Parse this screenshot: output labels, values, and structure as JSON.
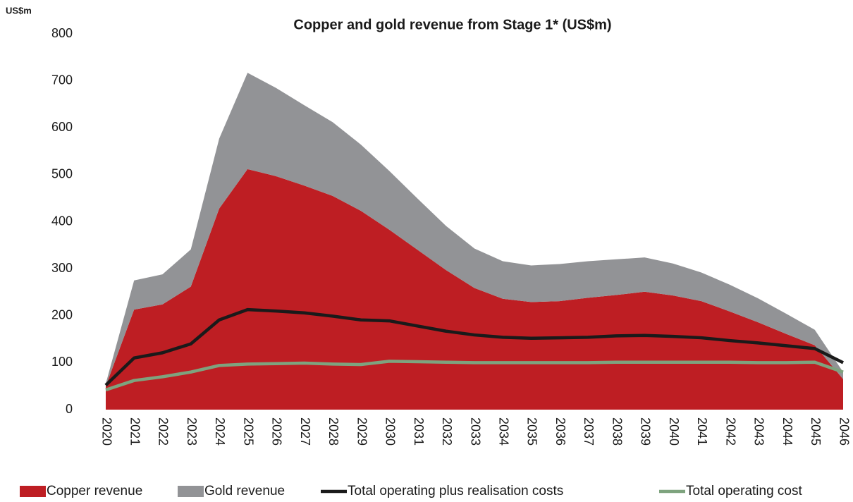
{
  "chart_data": {
    "type": "area",
    "stacked": true,
    "title": "Copper and gold revenue from Stage 1* (US$m)",
    "y_label": "US$m",
    "categories": [
      "2020",
      "2021",
      "2022",
      "2023",
      "2024",
      "2025",
      "2026",
      "2027",
      "2028",
      "2029",
      "2030",
      "2031",
      "2032",
      "2033",
      "2034",
      "2035",
      "2036",
      "2037",
      "2038",
      "2039",
      "2040",
      "2041",
      "2042",
      "2043",
      "2044",
      "2045",
      "2046"
    ],
    "series": [
      {
        "name": "Copper revenue",
        "type": "area",
        "color": "#be1e23",
        "values": [
          50,
          213,
          224,
          262,
          428,
          512,
          497,
          477,
          455,
          423,
          383,
          340,
          297,
          259,
          236,
          229,
          231,
          238,
          244,
          251,
          243,
          231,
          209,
          186,
          161,
          137,
          65
        ]
      },
      {
        "name": "Gold revenue",
        "type": "area",
        "color": "#929396",
        "values": [
          5,
          62,
          64,
          79,
          149,
          205,
          188,
          171,
          157,
          141,
          125,
          109,
          94,
          84,
          80,
          78,
          79,
          78,
          76,
          73,
          68,
          61,
          57,
          51,
          43,
          33,
          15
        ]
      },
      {
        "name": "Total operating plus realisation costs",
        "type": "line",
        "color": "#1a1a1a",
        "values": [
          52,
          110,
          121,
          140,
          191,
          213,
          210,
          206,
          199,
          191,
          189,
          178,
          167,
          159,
          154,
          152,
          153,
          154,
          157,
          158,
          156,
          153,
          147,
          142,
          136,
          130,
          100
        ]
      },
      {
        "name": "Total operating cost",
        "type": "line",
        "color": "#7ea37e",
        "values": [
          42,
          62,
          70,
          80,
          94,
          97,
          98,
          99,
          97,
          96,
          103,
          102,
          101,
          100,
          100,
          100,
          100,
          100,
          101,
          101,
          101,
          101,
          101,
          100,
          100,
          101,
          80
        ]
      }
    ],
    "ylim": [
      0,
      800
    ],
    "yticks": [
      0,
      100,
      200,
      300,
      400,
      500,
      600,
      700,
      800
    ],
    "grid": false,
    "legend": "bottom"
  }
}
